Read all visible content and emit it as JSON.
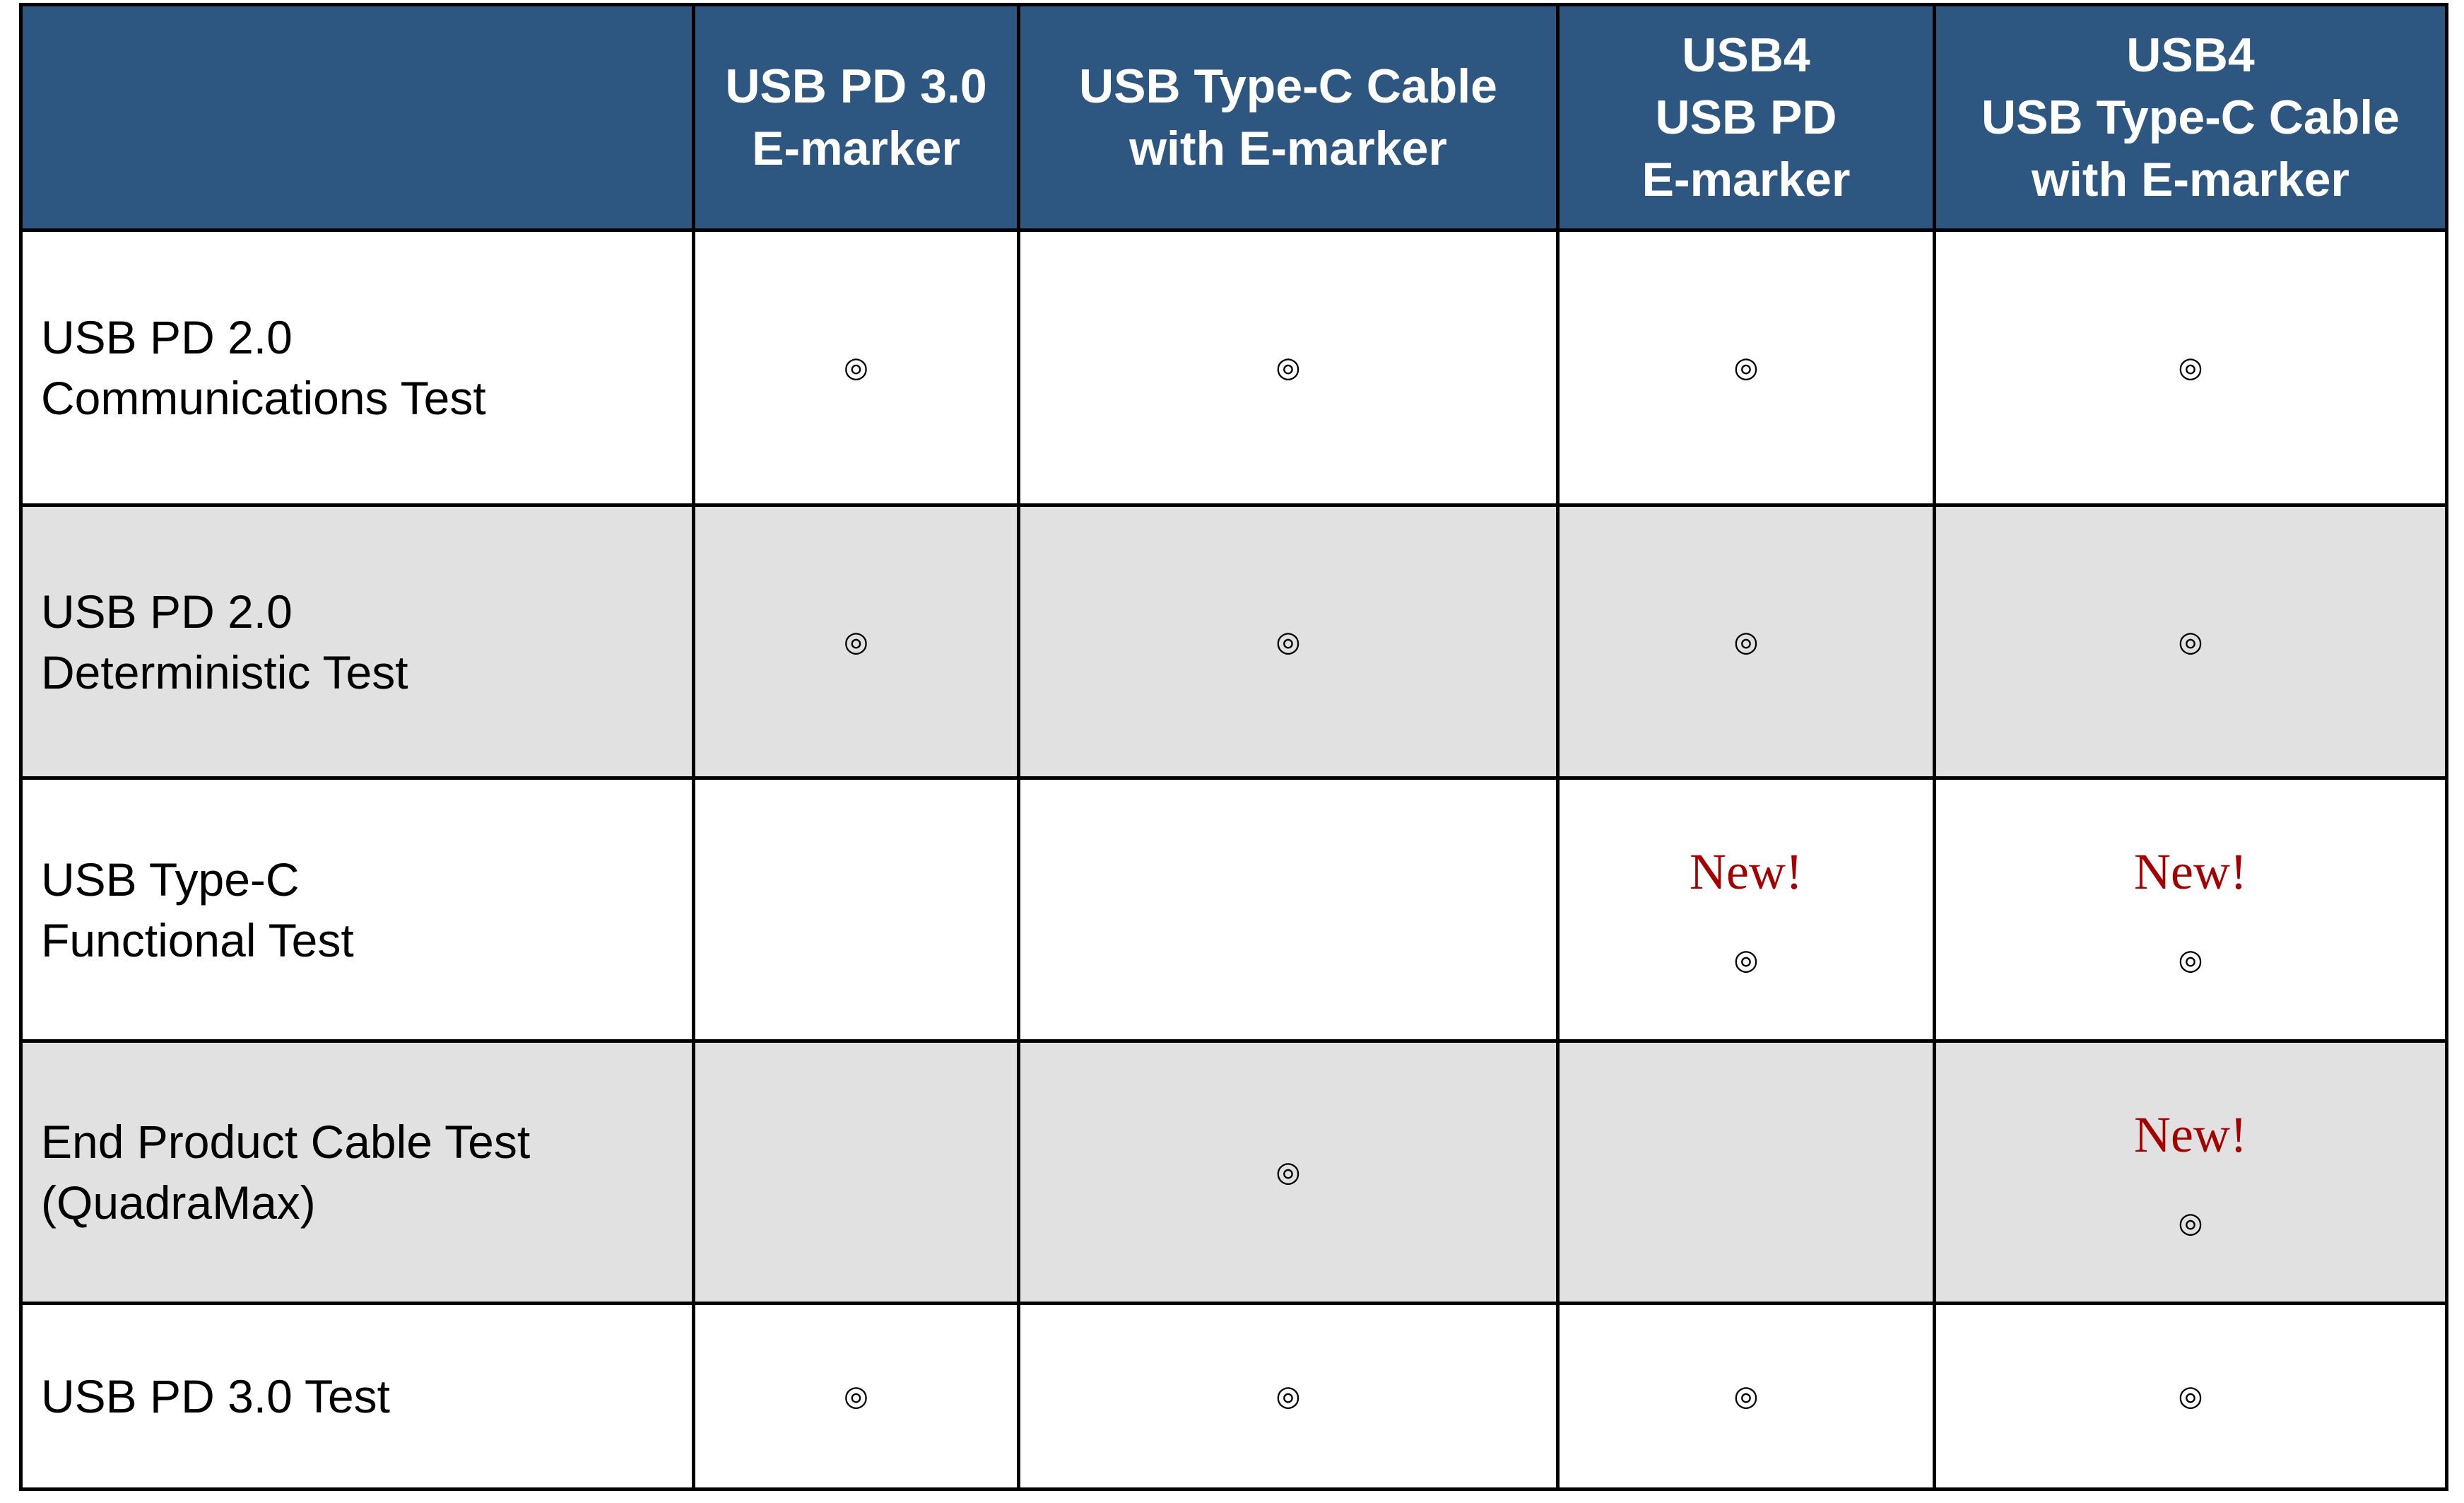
{
  "header": {
    "columns": [
      "",
      "USB PD 3.0\nE-marker",
      "USB Type-C Cable\nwith E-marker",
      "USB4\nUSB PD\nE-marker",
      "USB4\nUSB Type-C Cable\nwith E-marker"
    ]
  },
  "mark_symbol": "◎",
  "new_label": "New!",
  "colors": {
    "header_bg": "#2d5680",
    "alt_row_bg": "#e1e1e1",
    "new_text": "#a50000"
  },
  "rows": [
    {
      "label": "USB PD 2.0\nCommunications Test",
      "cells": [
        {
          "mark": true
        },
        {
          "mark": true
        },
        {
          "mark": true
        },
        {
          "mark": true
        }
      ]
    },
    {
      "label": "USB PD 2.0\nDeterministic Test",
      "cells": [
        {
          "mark": true
        },
        {
          "mark": true
        },
        {
          "mark": true
        },
        {
          "mark": true
        }
      ]
    },
    {
      "label": "USB Type-C\nFunctional Test",
      "cells": [
        {
          "mark": false
        },
        {
          "mark": false
        },
        {
          "mark": true,
          "new": true
        },
        {
          "mark": true,
          "new": true
        }
      ]
    },
    {
      "label": "End Product Cable Test\n(QuadraMax)",
      "cells": [
        {
          "mark": false
        },
        {
          "mark": true
        },
        {
          "mark": false
        },
        {
          "mark": true,
          "new": true
        }
      ]
    },
    {
      "label": "USB PD 3.0 Test",
      "cells": [
        {
          "mark": true
        },
        {
          "mark": true
        },
        {
          "mark": true
        },
        {
          "mark": true
        }
      ]
    }
  ]
}
